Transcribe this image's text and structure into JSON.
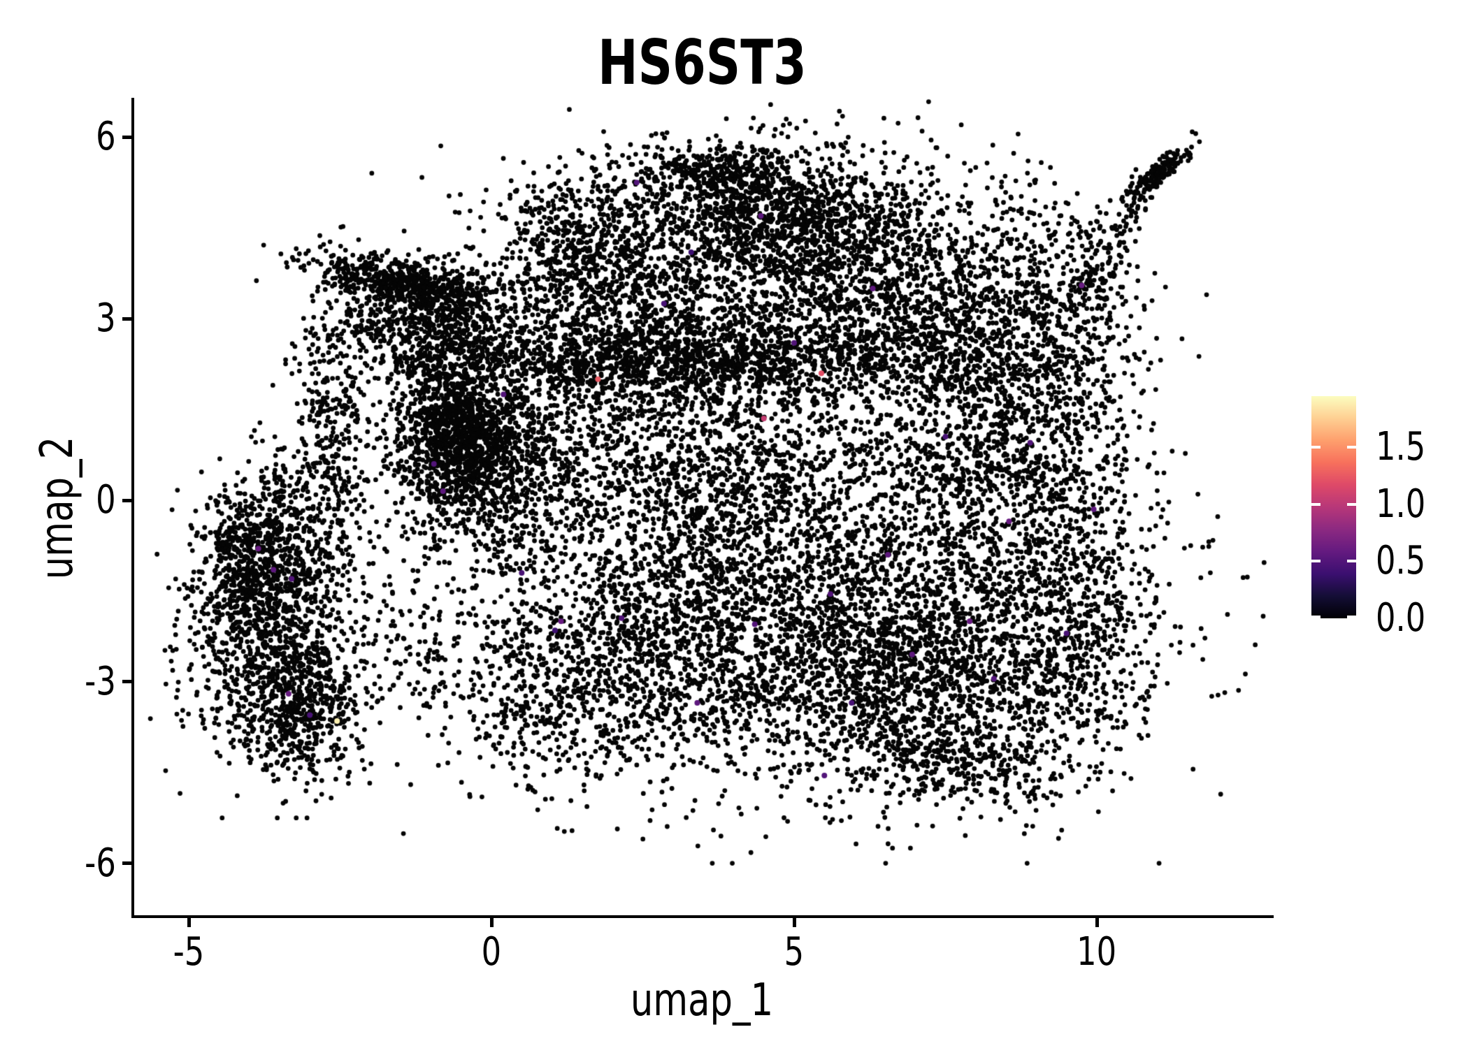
{
  "figure": {
    "background": "#ffffff",
    "text_color": "#000000"
  },
  "chart_data": {
    "type": "scatter",
    "title": "HS6ST3",
    "xlabel": "umap_1",
    "ylabel": "umap_2",
    "grid": false,
    "x_range": [
      -5.9,
      12.9
    ],
    "y_range": [
      -6.9,
      6.7
    ],
    "x_ticks": [
      {
        "v": -5,
        "label": "-5"
      },
      {
        "v": 0,
        "label": "0"
      },
      {
        "v": 5,
        "label": "5"
      },
      {
        "v": 10,
        "label": "10"
      }
    ],
    "y_ticks": [
      {
        "v": 6,
        "label": "6"
      },
      {
        "v": 3,
        "label": "3"
      },
      {
        "v": 0,
        "label": "0"
      },
      {
        "v": -3,
        "label": "-3"
      },
      {
        "v": -6,
        "label": "-6"
      }
    ],
    "point_color": "#050505",
    "point_radius": 3.4,
    "highlight_radius": 4,
    "seed": 1337,
    "colorbar": {
      "min": 0.0,
      "max": 1.95,
      "colormap": "magma",
      "position": "right",
      "ticks": [
        {
          "v": 1.5,
          "label": "1.5"
        },
        {
          "v": 1.0,
          "label": "1.0"
        },
        {
          "v": 0.5,
          "label": "0.5"
        },
        {
          "v": 0.0,
          "label": "0.0"
        }
      ],
      "stops": [
        {
          "t": 0.0,
          "c": "#000004"
        },
        {
          "t": 0.1,
          "c": "#140e36"
        },
        {
          "t": 0.2,
          "c": "#3b0f70"
        },
        {
          "t": 0.3,
          "c": "#641a80"
        },
        {
          "t": 0.4,
          "c": "#8c2981"
        },
        {
          "t": 0.5,
          "c": "#b73779"
        },
        {
          "t": 0.6,
          "c": "#de4968"
        },
        {
          "t": 0.7,
          "c": "#f7705c"
        },
        {
          "t": 0.8,
          "c": "#fe9f6d"
        },
        {
          "t": 0.9,
          "c": "#fecf92"
        },
        {
          "t": 1.0,
          "c": "#fcfdbf"
        }
      ]
    },
    "density_clusters": [
      {
        "cx": -3.9,
        "cy": -0.9,
        "sx": 0.45,
        "sy": 0.55,
        "n": 480
      },
      {
        "cx": -3.1,
        "cy": -3.5,
        "sx": 0.45,
        "sy": 0.55,
        "n": 430
      },
      {
        "cx": -3.5,
        "cy": -2.1,
        "sx": 0.8,
        "sy": 1.05,
        "n": 900
      },
      {
        "cx": -4.15,
        "cy": -2.4,
        "sx": 0.5,
        "sy": 0.85,
        "n": 230
      },
      {
        "cx": -2.6,
        "cy": 1.2,
        "sx": 0.3,
        "sy": 1.2,
        "n": 300
      },
      {
        "cx": -3.3,
        "cy": 0.1,
        "sx": 0.45,
        "sy": 0.6,
        "n": 130
      },
      {
        "cx": -1.5,
        "cy": 3.6,
        "sx": 0.78,
        "sy": 0.2,
        "rot": -0.2,
        "n": 560
      },
      {
        "cx": -1.75,
        "cy": 2.95,
        "sx": 0.5,
        "sy": 0.35,
        "n": 220
      },
      {
        "cx": -0.6,
        "cy": 3.1,
        "sx": 0.55,
        "sy": 0.45,
        "n": 320
      },
      {
        "cx": -0.8,
        "cy": 2.3,
        "sx": 0.5,
        "sy": 0.4,
        "n": 200
      },
      {
        "cx": -0.3,
        "cy": 0.95,
        "sx": 0.75,
        "sy": 0.8,
        "n": 1250
      },
      {
        "cx": -0.55,
        "cy": 1.05,
        "sx": 0.4,
        "sy": 0.5,
        "n": 520
      },
      {
        "cx": 0.9,
        "cy": 0.1,
        "sx": 1.1,
        "sy": 1.1,
        "n": 460
      },
      {
        "cx": 4.2,
        "cy": 3.6,
        "sx": 2.1,
        "sy": 1.05,
        "n": 2000
      },
      {
        "cx": 3.2,
        "cy": 2.3,
        "sx": 2.2,
        "sy": 0.33,
        "n": 1200
      },
      {
        "cx": 4.1,
        "cy": 5.0,
        "sx": 1.0,
        "sy": 0.42,
        "n": 620
      },
      {
        "cx": 3.6,
        "cy": 5.45,
        "sx": 0.55,
        "sy": 0.16,
        "n": 170
      },
      {
        "cx": 1.7,
        "cy": 3.4,
        "sx": 0.8,
        "sy": 0.85,
        "n": 480
      },
      {
        "cx": 6.9,
        "cy": 3.1,
        "sx": 1.0,
        "sy": 0.8,
        "n": 580
      },
      {
        "cx": 5.4,
        "cy": -2.1,
        "sx": 2.5,
        "sy": 1.3,
        "n": 2400
      },
      {
        "cx": 7.0,
        "cy": -2.9,
        "sx": 1.3,
        "sy": 0.95,
        "n": 1000
      },
      {
        "cx": 2.4,
        "cy": -2.6,
        "sx": 1.3,
        "sy": 1.0,
        "n": 780
      },
      {
        "cx": 7.8,
        "cy": -4.3,
        "sx": 0.9,
        "sy": 0.35,
        "n": 260
      },
      {
        "cx": 0.8,
        "cy": -3.4,
        "sx": 0.7,
        "sy": 0.8,
        "n": 230
      },
      {
        "cx": 9.3,
        "cy": 0.7,
        "sx": 0.85,
        "sy": 1.6,
        "n": 820
      },
      {
        "cx": 8.7,
        "cy": 2.7,
        "sx": 0.8,
        "sy": 0.7,
        "n": 370
      },
      {
        "cx": 7.9,
        "cy": 0.8,
        "sx": 0.85,
        "sy": 1.4,
        "n": 680
      },
      {
        "cx": 9.6,
        "cy": -2.5,
        "sx": 0.75,
        "sy": 1.05,
        "n": 430
      },
      {
        "cx": 8.7,
        "cy": 4.3,
        "sx": 0.7,
        "sy": 0.6,
        "n": 90
      },
      {
        "cx": -1.2,
        "cy": -2.6,
        "sx": 0.6,
        "sy": 0.7,
        "n": 110
      },
      {
        "cx": 10.05,
        "cy": 4.15,
        "sx": 0.4,
        "sy": 0.4,
        "n": 55
      },
      {
        "cx": 11.02,
        "cy": 5.4,
        "sx": 0.3,
        "sy": 0.09,
        "rot": 0.62,
        "n": 185
      },
      {
        "cx": 9.9,
        "cy": 3.5,
        "sx": 0.35,
        "sy": 0.3,
        "n": 50
      },
      {
        "cx": 1.4,
        "cy": 4.4,
        "sx": 0.7,
        "sy": 0.5,
        "n": 250
      },
      {
        "cx": 5.6,
        "cy": 4.5,
        "sx": 1.0,
        "sy": 0.6,
        "n": 480
      },
      {
        "cx": 2.7,
        "cy": 1.2,
        "sx": 1.0,
        "sy": 0.8,
        "n": 400
      },
      {
        "cx": 5.2,
        "cy": 0.6,
        "sx": 1.5,
        "sy": 0.9,
        "n": 650
      },
      {
        "cx": 3.6,
        "cy": -0.6,
        "sx": 1.2,
        "sy": 0.9,
        "n": 480
      },
      {
        "line": [
          9.45,
          3.2,
          10.75,
          5.05
        ],
        "jitter": 0.12,
        "n": 70
      }
    ],
    "highlighted_points": [
      [
        -2.55,
        -3.65,
        1.9
      ],
      [
        1.76,
        2.0,
        1.25
      ],
      [
        5.45,
        2.1,
        1.2
      ],
      [
        4.5,
        1.35,
        1.05
      ],
      [
        -3.85,
        -0.8,
        0.6
      ],
      [
        -3.6,
        -1.15,
        0.55
      ],
      [
        -3.3,
        -1.3,
        0.5
      ],
      [
        -3.35,
        -3.2,
        0.6
      ],
      [
        -3.0,
        -3.55,
        0.45
      ],
      [
        -0.95,
        0.6,
        0.5
      ],
      [
        -0.8,
        0.15,
        0.55
      ],
      [
        0.2,
        1.75,
        0.5
      ],
      [
        1.15,
        -2.0,
        0.6
      ],
      [
        0.5,
        -1.2,
        0.45
      ],
      [
        2.4,
        5.25,
        0.5
      ],
      [
        4.45,
        4.7,
        0.55
      ],
      [
        2.85,
        3.25,
        0.45
      ],
      [
        5.0,
        2.6,
        0.5
      ],
      [
        6.3,
        3.5,
        0.55
      ],
      [
        3.3,
        4.1,
        0.4
      ],
      [
        9.75,
        3.55,
        0.6
      ],
      [
        9.95,
        -0.15,
        0.55
      ],
      [
        8.9,
        0.95,
        0.5
      ],
      [
        7.5,
        1.05,
        0.45
      ],
      [
        6.55,
        -0.9,
        0.55
      ],
      [
        5.6,
        -1.55,
        0.5
      ],
      [
        7.9,
        -2.0,
        0.6
      ],
      [
        6.95,
        -2.55,
        0.55
      ],
      [
        8.3,
        -2.95,
        0.5
      ],
      [
        5.95,
        -3.35,
        0.45
      ],
      [
        4.35,
        -2.05,
        0.5
      ],
      [
        3.4,
        -3.35,
        0.55
      ],
      [
        2.15,
        -1.95,
        0.5
      ],
      [
        8.55,
        -0.35,
        0.6
      ],
      [
        9.5,
        -2.2,
        0.45
      ],
      [
        1.05,
        -2.15,
        0.4
      ],
      [
        5.5,
        -4.55,
        0.5
      ]
    ]
  }
}
